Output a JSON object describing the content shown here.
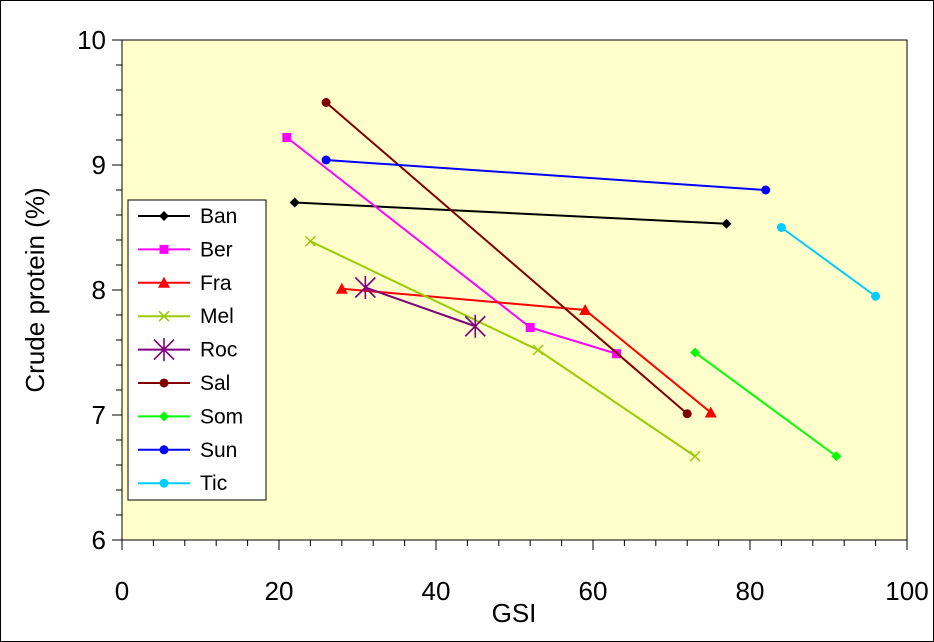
{
  "chart_data": {
    "type": "line",
    "title": "",
    "xlabel": "GSI",
    "ylabel": "Crude protein (%)",
    "xlim": [
      0,
      100
    ],
    "ylim": [
      6,
      10
    ],
    "x_ticks": [
      0,
      20,
      40,
      60,
      80,
      100
    ],
    "y_ticks": [
      6,
      7,
      8,
      9,
      10
    ],
    "x_minor_step": 4,
    "y_minor_step": 0.2,
    "grid": false,
    "legend_position": "left",
    "plot_background": "#FFFFCC",
    "series": [
      {
        "name": "Ban",
        "color": "#000000",
        "marker": "diamond",
        "x": [
          22,
          77
        ],
        "y": [
          8.7,
          8.53
        ]
      },
      {
        "name": "Ber",
        "color": "#FF00FF",
        "marker": "square",
        "x": [
          21,
          52,
          63
        ],
        "y": [
          9.22,
          7.7,
          7.49
        ]
      },
      {
        "name": "Fra",
        "color": "#FF0000",
        "marker": "triangle",
        "x": [
          28,
          59,
          75
        ],
        "y": [
          8.01,
          7.84,
          7.02
        ]
      },
      {
        "name": "Mel",
        "color": "#99CC00",
        "marker": "x",
        "x": [
          24,
          53,
          73
        ],
        "y": [
          8.39,
          7.52,
          6.67
        ]
      },
      {
        "name": "Roc",
        "color": "#800080",
        "marker": "star",
        "x": [
          31,
          45
        ],
        "y": [
          8.02,
          7.71
        ]
      },
      {
        "name": "Sal",
        "color": "#800000",
        "marker": "circle",
        "x": [
          26,
          72
        ],
        "y": [
          9.5,
          7.01
        ]
      },
      {
        "name": "Som",
        "color": "#00FF00",
        "marker": "diamond",
        "x": [
          73,
          91
        ],
        "y": [
          7.5,
          6.67
        ]
      },
      {
        "name": "Sun",
        "color": "#0000FF",
        "marker": "circle",
        "x": [
          26,
          82
        ],
        "y": [
          9.04,
          8.8
        ]
      },
      {
        "name": "Tic",
        "color": "#00CCFF",
        "marker": "circle",
        "x": [
          84,
          96
        ],
        "y": [
          8.5,
          7.95
        ]
      }
    ]
  }
}
